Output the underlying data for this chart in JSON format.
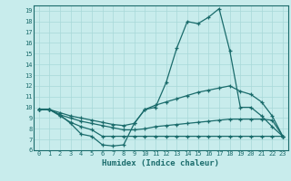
{
  "xlabel": "Humidex (Indice chaleur)",
  "bg_color": "#c8ecec",
  "grid_color": "#a8d8d8",
  "line_color": "#1a6b6b",
  "xlim": [
    -0.5,
    23.5
  ],
  "ylim": [
    6,
    19.5
  ],
  "xticks": [
    0,
    1,
    2,
    3,
    4,
    5,
    6,
    7,
    8,
    9,
    10,
    11,
    12,
    13,
    14,
    15,
    16,
    17,
    18,
    19,
    20,
    21,
    22,
    23
  ],
  "yticks": [
    6,
    7,
    8,
    9,
    10,
    11,
    12,
    13,
    14,
    15,
    16,
    17,
    18,
    19
  ],
  "series": [
    {
      "x": [
        0,
        1,
        2,
        3,
        4,
        5,
        6,
        7,
        8,
        9,
        10,
        11,
        12,
        13,
        14,
        15,
        16,
        17,
        18,
        19,
        20,
        21,
        22,
        23
      ],
      "y": [
        9.8,
        9.8,
        9.3,
        8.5,
        7.5,
        7.3,
        6.5,
        6.4,
        6.5,
        8.5,
        9.8,
        10.0,
        12.3,
        15.5,
        18.0,
        17.8,
        18.4,
        19.2,
        15.3,
        10.0,
        10.0,
        9.2,
        8.2,
        7.3
      ]
    },
    {
      "x": [
        0,
        1,
        2,
        3,
        4,
        5,
        6,
        7,
        8,
        9,
        10,
        11,
        12,
        13,
        14,
        15,
        16,
        17,
        18,
        19,
        20,
        21,
        22,
        23
      ],
      "y": [
        9.8,
        9.8,
        9.5,
        9.2,
        9.0,
        8.8,
        8.6,
        8.4,
        8.3,
        8.5,
        9.8,
        10.2,
        10.5,
        10.8,
        11.1,
        11.4,
        11.6,
        11.8,
        12.0,
        11.5,
        11.2,
        10.5,
        9.2,
        7.3
      ]
    },
    {
      "x": [
        0,
        1,
        2,
        3,
        4,
        5,
        6,
        7,
        8,
        9,
        10,
        11,
        12,
        13,
        14,
        15,
        16,
        17,
        18,
        19,
        20,
        21,
        22,
        23
      ],
      "y": [
        9.8,
        9.8,
        9.3,
        9.0,
        8.7,
        8.5,
        8.3,
        8.1,
        7.9,
        7.9,
        8.0,
        8.2,
        8.3,
        8.4,
        8.5,
        8.6,
        8.7,
        8.8,
        8.9,
        8.9,
        8.9,
        8.9,
        8.8,
        7.3
      ]
    },
    {
      "x": [
        0,
        1,
        2,
        3,
        4,
        5,
        6,
        7,
        8,
        9,
        10,
        11,
        12,
        13,
        14,
        15,
        16,
        17,
        18,
        19,
        20,
        21,
        22,
        23
      ],
      "y": [
        9.8,
        9.8,
        9.2,
        8.6,
        8.2,
        7.9,
        7.3,
        7.3,
        7.3,
        7.3,
        7.3,
        7.3,
        7.3,
        7.3,
        7.3,
        7.3,
        7.3,
        7.3,
        7.3,
        7.3,
        7.3,
        7.3,
        7.3,
        7.3
      ]
    }
  ]
}
